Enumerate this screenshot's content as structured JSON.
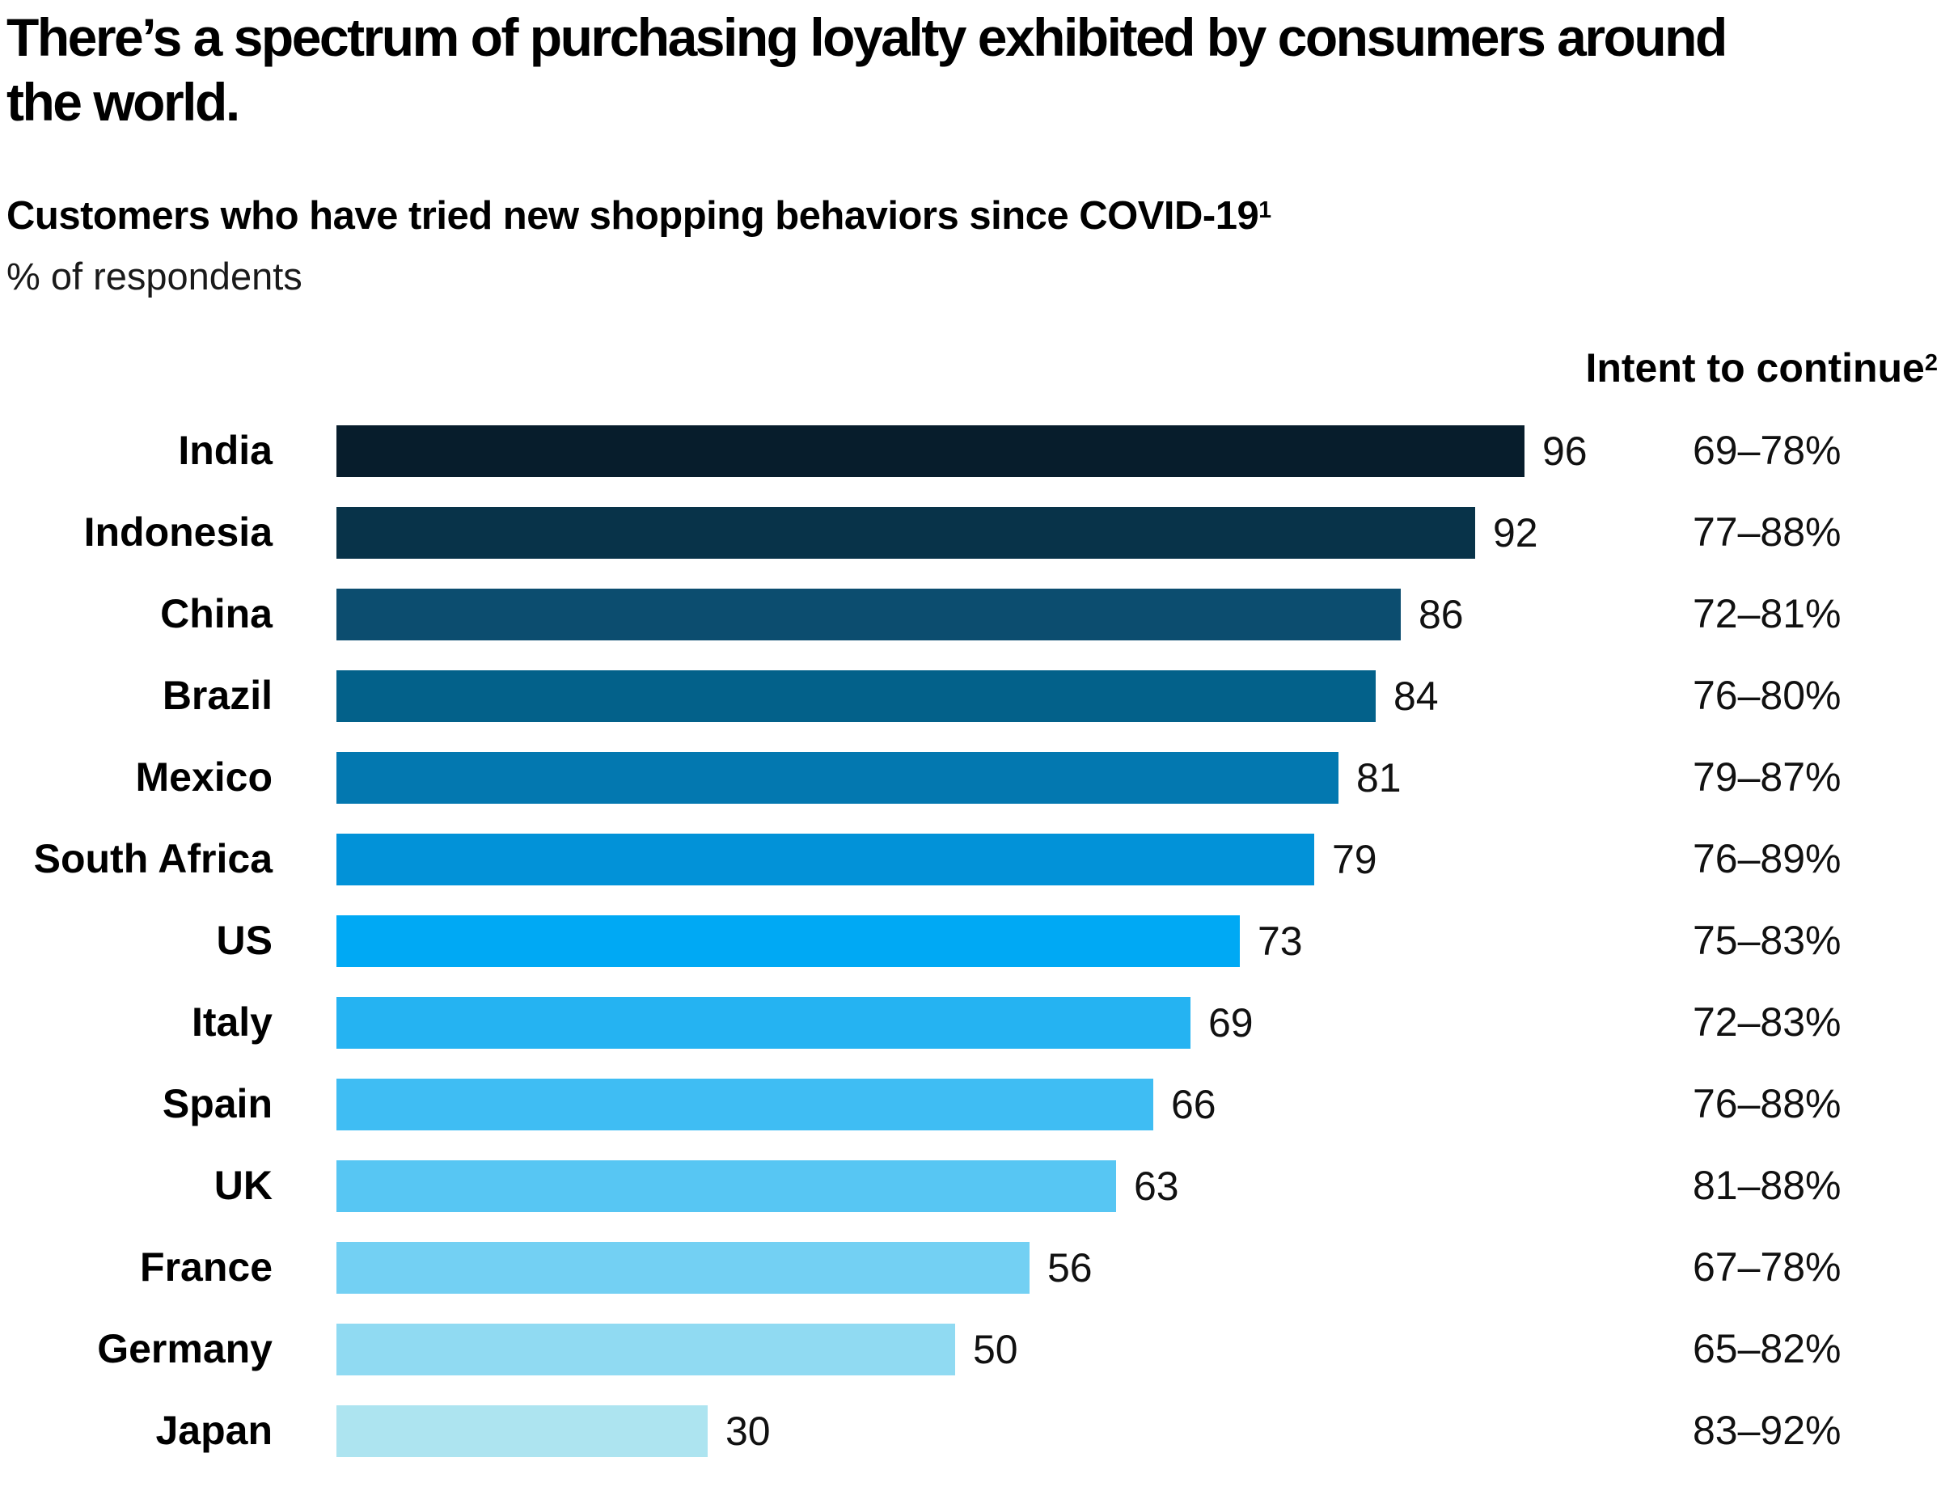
{
  "title": {
    "lines": [
      "There’s a spectrum of purchasing loyalty exhibited by consumers around",
      "the world."
    ]
  },
  "subtitle": {
    "text": "Customers who have tried new shopping behaviors since COVID-19",
    "superscript": "1"
  },
  "unit_label": "% of respondents",
  "intent_header": {
    "text": "Intent to continue",
    "superscript": "2"
  },
  "chart_data": {
    "type": "bar",
    "orientation": "horizontal",
    "title": "Customers who have tried new shopping behaviors since COVID-19",
    "xlabel": "% of respondents",
    "xlim": [
      0,
      100
    ],
    "grid": false,
    "legend": "none",
    "categories": [
      "India",
      "Indonesia",
      "China",
      "Brazil",
      "Mexico",
      "South Africa",
      "US",
      "Italy",
      "Spain",
      "UK",
      "France",
      "Germany",
      "Japan"
    ],
    "values": [
      96,
      92,
      86,
      84,
      81,
      79,
      73,
      69,
      66,
      63,
      56,
      50,
      30
    ],
    "intent_to_continue": [
      "69–78%",
      "77–88%",
      "72–81%",
      "76–80%",
      "79–87%",
      "76–89%",
      "75–83%",
      "72–83%",
      "76–88%",
      "81–88%",
      "67–78%",
      "65–82%",
      "83–92%"
    ],
    "rows": [
      {
        "country": "India",
        "value": 96,
        "intent": "69–78%",
        "color": "#071D2C"
      },
      {
        "country": "Indonesia",
        "value": 92,
        "intent": "77–88%",
        "color": "#083349"
      },
      {
        "country": "China",
        "value": 86,
        "intent": "72–81%",
        "color": "#0C4D6F"
      },
      {
        "country": "Brazil",
        "value": 84,
        "intent": "76–80%",
        "color": "#03618A"
      },
      {
        "country": "Mexico",
        "value": 81,
        "intent": "79–87%",
        "color": "#0378B0"
      },
      {
        "country": "South Africa",
        "value": 79,
        "intent": "76–89%",
        "color": "#0292D8"
      },
      {
        "country": "US",
        "value": 73,
        "intent": "75–83%",
        "color": "#00A9F4"
      },
      {
        "country": "Italy",
        "value": 69,
        "intent": "72–83%",
        "color": "#25B3F2"
      },
      {
        "country": "Spain",
        "value": 66,
        "intent": "76–88%",
        "color": "#3FBDF3"
      },
      {
        "country": "UK",
        "value": 63,
        "intent": "81–88%",
        "color": "#57C6F3"
      },
      {
        "country": "France",
        "value": 56,
        "intent": "67–78%",
        "color": "#73D0F3"
      },
      {
        "country": "Germany",
        "value": 50,
        "intent": "65–82%",
        "color": "#90DAF2"
      },
      {
        "country": "Japan",
        "value": 30,
        "intent": "83–92%",
        "color": "#ADE4F0"
      }
    ]
  }
}
